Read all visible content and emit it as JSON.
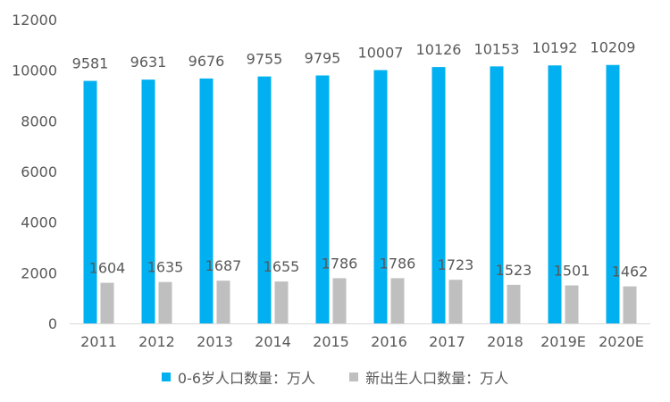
{
  "chart_data": {
    "type": "bar",
    "categories": [
      "2011",
      "2012",
      "2013",
      "2014",
      "2015",
      "2016",
      "2017",
      "2018",
      "2019E",
      "2020E"
    ],
    "series": [
      {
        "name": "0-6岁人口数量：万人",
        "color": "#00b0f0",
        "values": [
          9581,
          9631,
          9676,
          9755,
          9795,
          10007,
          10126,
          10153,
          10192,
          10209
        ]
      },
      {
        "name": "新出生人口数量：万人",
        "color": "#bfbfbf",
        "values": [
          1604,
          1635,
          1687,
          1655,
          1786,
          1786,
          1723,
          1523,
          1501,
          1462
        ]
      }
    ],
    "ylim": [
      0,
      12000
    ],
    "yticks": [
      0,
      2000,
      4000,
      6000,
      8000,
      10000,
      12000
    ],
    "grid": false,
    "data_labels": true,
    "legend_position": "bottom"
  }
}
